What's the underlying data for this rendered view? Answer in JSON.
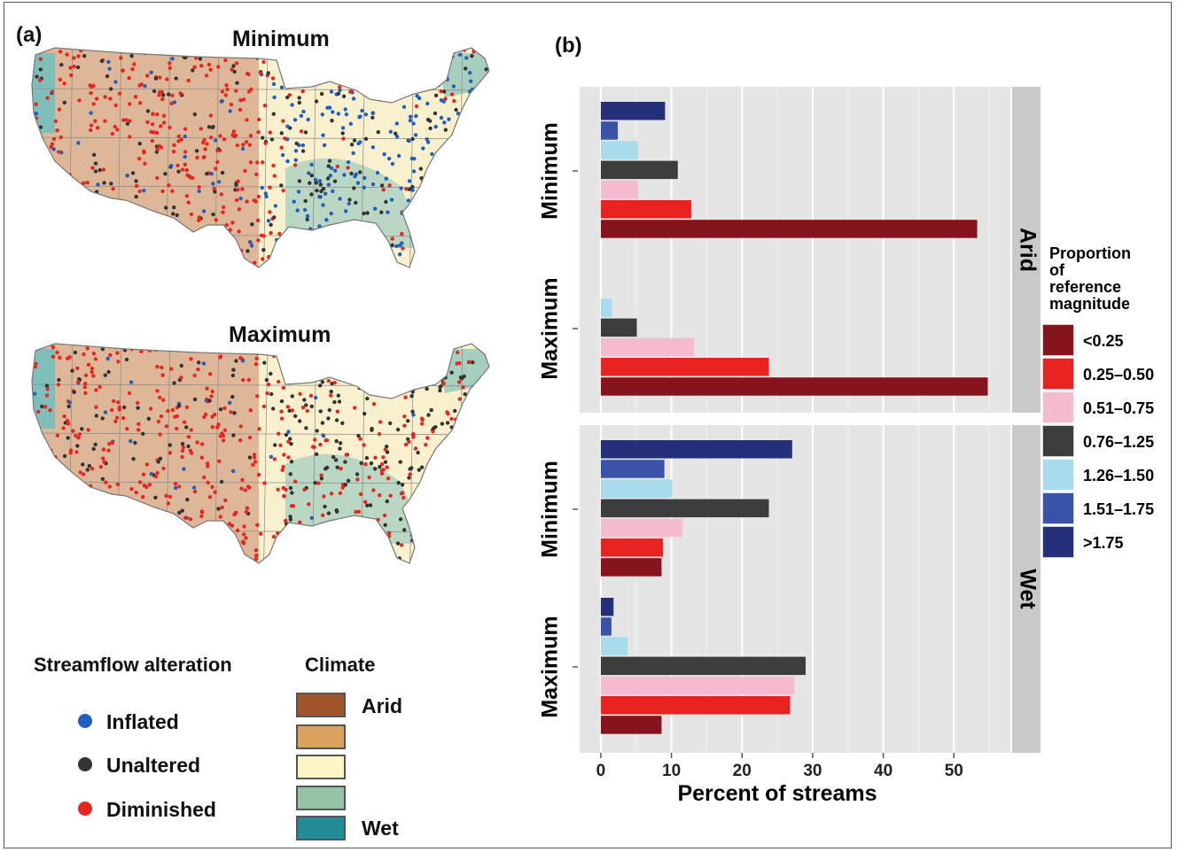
{
  "panel_a": {
    "label": "(a)",
    "maps": [
      {
        "title": "Minimum"
      },
      {
        "title": "Maximum"
      }
    ],
    "legend": {
      "alteration_title": "Streamflow alteration",
      "alteration_items": [
        {
          "label": "Inflated",
          "color": "#1f5fbf"
        },
        {
          "label": "Unaltered",
          "color": "#333333"
        },
        {
          "label": "Diminished",
          "color": "#e8261f"
        }
      ],
      "climate_title": "Climate",
      "climate_swatches": [
        "#a0562a",
        "#d9a05e",
        "#fcf5c4",
        "#96c2a6",
        "#238a97"
      ],
      "climate_arid": "Arid",
      "climate_wet": "Wet"
    }
  },
  "panel_b": {
    "label": "(b)"
  },
  "chart_data": {
    "type": "bar",
    "orientation": "horizontal",
    "xlabel": "Percent of streams",
    "xlim": [
      -3,
      58
    ],
    "xticks": [
      0,
      10,
      20,
      30,
      40,
      50
    ],
    "grid": true,
    "legend_title": "Proportion of reference magnitude",
    "legend_placement": "right",
    "categories": [
      "<0.25",
      "0.25–0.50",
      "0.51–0.75",
      "0.76–1.25",
      "1.26–1.50",
      "1.51–1.75",
      ">1.75"
    ],
    "colors": [
      "#86141c",
      "#e8221f",
      "#f5bccf",
      "#3c3c3c",
      "#a8dcec",
      "#3b52a9",
      "#25307b"
    ],
    "facets": [
      {
        "name": "Arid",
        "groups": [
          {
            "name": "Minimum",
            "values": [
              53.3,
              12.8,
              5.3,
              10.9,
              5.3,
              2.4,
              9.1
            ]
          },
          {
            "name": "Maximum",
            "values": [
              54.8,
              23.8,
              13.2,
              5.1,
              1.6,
              0,
              0
            ]
          }
        ]
      },
      {
        "name": "Wet",
        "groups": [
          {
            "name": "Minimum",
            "values": [
              8.6,
              8.8,
              11.6,
              23.8,
              10.1,
              9.0,
              27.1
            ]
          },
          {
            "name": "Maximum",
            "values": [
              8.6,
              26.8,
              27.4,
              29.0,
              3.8,
              1.5,
              1.8
            ]
          }
        ]
      }
    ]
  }
}
